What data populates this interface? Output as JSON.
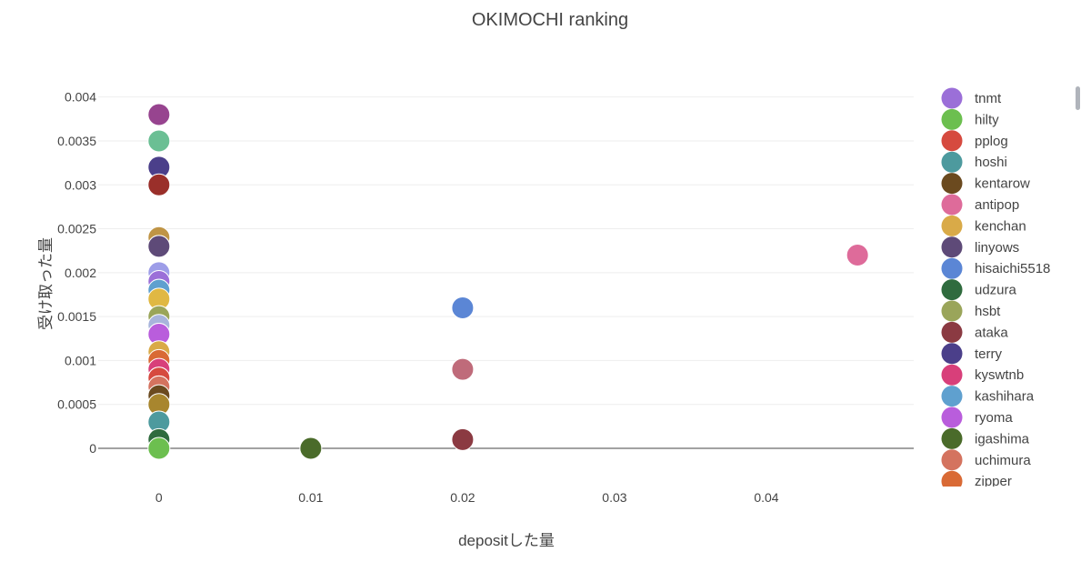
{
  "chart_data": {
    "type": "scatter",
    "title": "OKIMOCHI ranking",
    "xlabel": "depositした量",
    "ylabel": "受け取った量",
    "xlim": [
      -0.004,
      0.0497
    ],
    "ylim": [
      -0.0003,
      0.0041
    ],
    "x_ticks": [
      "0",
      "0.01",
      "0.02",
      "0.03",
      "0.04"
    ],
    "y_ticks": [
      "0",
      "0.0005",
      "0.001",
      "0.0015",
      "0.002",
      "0.0025",
      "0.003",
      "0.0035",
      "0.004"
    ],
    "grid": true,
    "legend_placement": "right",
    "series": [
      {
        "name": "tnmt",
        "color": "#9b6fd8",
        "x": [
          0
        ],
        "y": [
          0.0019
        ]
      },
      {
        "name": "hilty",
        "color": "#6cbf4f",
        "x": [
          0
        ],
        "y": [
          0
        ]
      },
      {
        "name": "pplog",
        "color": "#d64a3f",
        "x": [
          0
        ],
        "y": [
          0.0008
        ]
      },
      {
        "name": "hoshi",
        "color": "#4d9a9e",
        "x": [
          0
        ],
        "y": [
          0.0003
        ]
      },
      {
        "name": "kentarow",
        "color": "#6b4a1f",
        "x": [
          0
        ],
        "y": [
          0.0006
        ]
      },
      {
        "name": "antipop",
        "color": "#de6b9a",
        "x": [
          0.046
        ],
        "y": [
          0.0022
        ]
      },
      {
        "name": "kenchan",
        "color": "#d9aa48",
        "x": [
          0
        ],
        "y": [
          0.0011
        ]
      },
      {
        "name": "linyows",
        "color": "#5e4a78",
        "x": [
          0
        ],
        "y": [
          0.0023
        ]
      },
      {
        "name": "hisaichi5518",
        "color": "#5b86d5",
        "x": [
          0.02
        ],
        "y": [
          0.0016
        ]
      },
      {
        "name": "udzura",
        "color": "#2f6b3e",
        "x": [
          0
        ],
        "y": [
          0.0001
        ]
      },
      {
        "name": "hsbt",
        "color": "#9aa55a",
        "x": [
          0
        ],
        "y": [
          0.0015
        ]
      },
      {
        "name": "ataka",
        "color": "#8b3a42",
        "x": [
          0.02
        ],
        "y": [
          0.0001
        ]
      },
      {
        "name": "terry",
        "color": "#4b3f8a",
        "x": [
          0
        ],
        "y": [
          0.0032
        ]
      },
      {
        "name": "kyswtnb",
        "color": "#d83f7a",
        "x": [
          0
        ],
        "y": [
          0.0009
        ]
      },
      {
        "name": "kashihara",
        "color": "#5fa0cf",
        "x": [
          0
        ],
        "y": [
          0.0018
        ]
      },
      {
        "name": "ryoma",
        "color": "#b95ddc",
        "x": [
          0
        ],
        "y": [
          0.0013
        ]
      },
      {
        "name": "igashima",
        "color": "#4a6b2a",
        "x": [
          0.01
        ],
        "y": [
          0
        ]
      },
      {
        "name": "uchimura",
        "color": "#d4735f",
        "x": [
          0
        ],
        "y": [
          0.0007
        ]
      },
      {
        "name": "zipper",
        "color": "#d96a35",
        "x": [
          0
        ],
        "y": [
          0.001
        ]
      }
    ],
    "extra_points": [
      {
        "color": "#97448f",
        "x": 0,
        "y": 0.0038
      },
      {
        "color": "#6bbf94",
        "x": 0,
        "y": 0.0035
      },
      {
        "color": "#3e5586",
        "x": 0,
        "y": 0.0032
      },
      {
        "color": "#9a2f2a",
        "x": 0,
        "y": 0.003
      },
      {
        "color": "#3e5586",
        "x": 0,
        "y": 0.0023
      },
      {
        "color": "#bf9445",
        "x": 0,
        "y": 0.0024
      },
      {
        "color": "#9d9de8",
        "x": 0,
        "y": 0.002
      },
      {
        "color": "#e0b843",
        "x": 0,
        "y": 0.0017
      },
      {
        "color": "#d94fc4",
        "x": 0,
        "y": 0.0018
      },
      {
        "color": "#c98fb8",
        "x": 0,
        "y": 0.0013
      },
      {
        "color": "#a8b4dc",
        "x": 0,
        "y": 0.0014
      },
      {
        "color": "#e08c8c",
        "x": 0,
        "y": 0.0008
      },
      {
        "color": "#8c5a2a",
        "x": 0,
        "y": 0.0007
      },
      {
        "color": "#a8862e",
        "x": 0,
        "y": 0.0005
      },
      {
        "color": "#bf6b7a",
        "x": 0.02,
        "y": 0.0009
      }
    ]
  }
}
